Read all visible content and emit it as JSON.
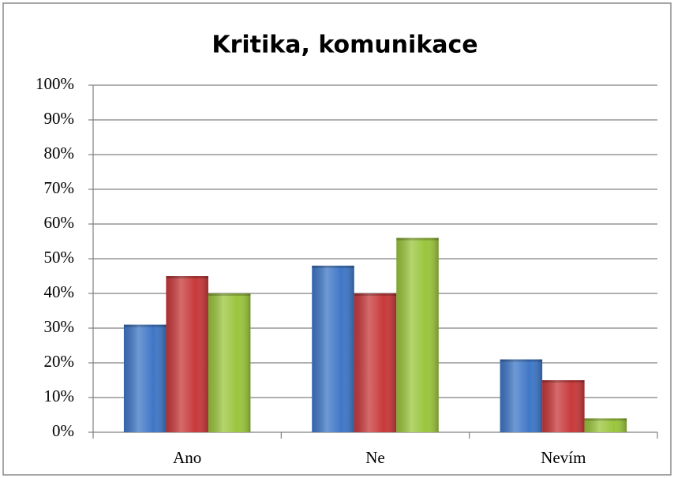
{
  "chart_data": {
    "type": "bar",
    "title": "Kritika, komunikace",
    "categories": [
      "Ano",
      "Ne",
      "Nevím"
    ],
    "series": [
      {
        "color": "#3f77c7",
        "values": [
          31,
          48,
          21
        ]
      },
      {
        "color": "#c8393b",
        "values": [
          45,
          40,
          15
        ]
      },
      {
        "color": "#9bc53d",
        "values": [
          40,
          56,
          4
        ]
      }
    ],
    "ylim": [
      0,
      100
    ],
    "yticks": [
      {
        "value": 0,
        "label": "0%"
      },
      {
        "value": 10,
        "label": "10%"
      },
      {
        "value": 20,
        "label": "20%"
      },
      {
        "value": 30,
        "label": "30%"
      },
      {
        "value": 40,
        "label": "40%"
      },
      {
        "value": 50,
        "label": "50%"
      },
      {
        "value": 60,
        "label": "60%"
      },
      {
        "value": 70,
        "label": "70%"
      },
      {
        "value": 80,
        "label": "80%"
      },
      {
        "value": 90,
        "label": "90%"
      },
      {
        "value": 100,
        "label": "100%"
      }
    ],
    "grid": true
  }
}
